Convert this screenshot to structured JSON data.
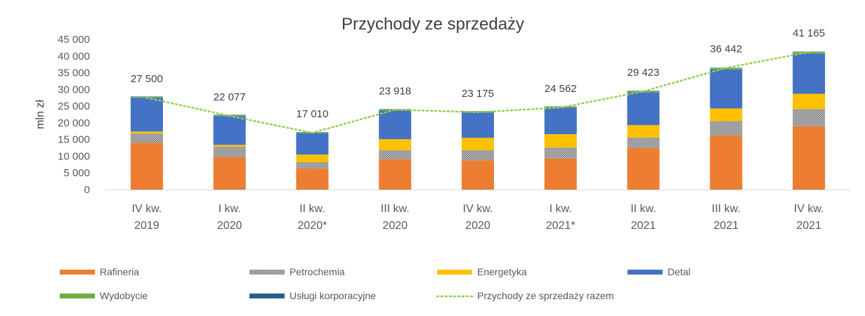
{
  "chart_data": {
    "type": "bar",
    "stacked": true,
    "title": "Przychody ze sprzedaży",
    "ylabel": "mln zł",
    "xlabel": "",
    "ylim": [
      0,
      45000
    ],
    "y_ticks": [
      "0",
      "5 000",
      "10 000",
      "15 000",
      "20 000",
      "25 000",
      "30 000",
      "35 000",
      "40 000",
      "45 000"
    ],
    "categories": [
      [
        "IV kw.",
        "2019"
      ],
      [
        "I kw.",
        "2020"
      ],
      [
        "II kw.",
        "2020*"
      ],
      [
        "III kw.",
        "2020"
      ],
      [
        "IV kw.",
        "2020"
      ],
      [
        "I kw.",
        "2021*"
      ],
      [
        "II kw.",
        "2021"
      ],
      [
        "III kw.",
        "2021"
      ],
      [
        "IV kw.",
        "2021"
      ]
    ],
    "series": [
      {
        "name": "Rafineria",
        "color": "#ED7D31",
        "pattern": "solid",
        "values": [
          14000,
          9700,
          6300,
          9100,
          8800,
          9300,
          12400,
          16200,
          19000
        ]
      },
      {
        "name": "Petrochemia",
        "color": "#A5A5A5",
        "pattern": "dots",
        "values": [
          2800,
          3200,
          1900,
          2700,
          3000,
          3300,
          3200,
          4300,
          5100
        ]
      },
      {
        "name": "Energetyka",
        "color": "#FFC000",
        "pattern": "solid",
        "values": [
          600,
          500,
          2300,
          3300,
          3700,
          4000,
          3700,
          3800,
          4600
        ]
      },
      {
        "name": "Detal",
        "color": "#4472C4",
        "pattern": "solid",
        "values": [
          10100,
          8600,
          6400,
          8600,
          7600,
          7900,
          9800,
          11700,
          12000
        ]
      },
      {
        "name": "Wydobycie",
        "color": "#70AD47",
        "pattern": "solid",
        "values": [
          300,
          300,
          200,
          300,
          300,
          300,
          400,
          400,
          500
        ]
      },
      {
        "name": "Usługi korporacyjne",
        "color": "#255E91",
        "pattern": "solid",
        "values": [
          100,
          100,
          100,
          100,
          100,
          100,
          100,
          100,
          100
        ]
      }
    ],
    "total_series": {
      "name": "Przychody ze sprzedaży razem",
      "color": "#92D050",
      "style": "dotted",
      "values": [
        27500,
        22077,
        17010,
        23918,
        23175,
        24562,
        29423,
        36442,
        41165
      ],
      "labels": [
        "27 500",
        "22 077",
        "17 010",
        "23 918",
        "23 175",
        "24 562",
        "29 423",
        "36 442",
        "41 165"
      ]
    },
    "legend_position": "bottom",
    "grid": false
  }
}
